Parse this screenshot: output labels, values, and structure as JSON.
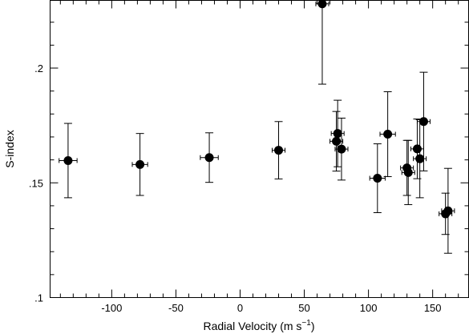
{
  "chart_data": {
    "type": "scatter",
    "xlabel": "Radial Velocity",
    "xlabel_unit": "(m s",
    "xlabel_unit_exp": "−1",
    "xlabel_unit_close": ")",
    "ylabel": "S-index",
    "xlim": [
      -148,
      178
    ],
    "ylim": [
      0.1,
      0.2295
    ],
    "xticks_major": [
      -100,
      -50,
      0,
      50,
      100,
      150
    ],
    "xtick_labels": [
      "-100",
      "-50",
      "0",
      "50",
      "100",
      "150"
    ],
    "xticks_minor_step": 10,
    "yticks_major": [
      0.1,
      0.15,
      0.2
    ],
    "ytick_labels": [
      ".1",
      ".15",
      ".2"
    ],
    "yticks_minor_step": 0.01,
    "grid": false,
    "points": [
      {
        "x": -134,
        "y": 0.1597,
        "xerr": 7,
        "yerr": 0.0162
      },
      {
        "x": -78,
        "y": 0.158,
        "xerr": 6,
        "yerr": 0.0135
      },
      {
        "x": -24,
        "y": 0.161,
        "xerr": 7,
        "yerr": 0.0108
      },
      {
        "x": 30,
        "y": 0.1642,
        "xerr": 5,
        "yerr": 0.0125
      },
      {
        "x": 64,
        "y": 0.228,
        "xerr": 5,
        "yerr": 0.035
      },
      {
        "x": 75,
        "y": 0.1681,
        "xerr": 5,
        "yerr": 0.013
      },
      {
        "x": 76,
        "y": 0.1715,
        "xerr": 5,
        "yerr": 0.0145
      },
      {
        "x": 79,
        "y": 0.1647,
        "xerr": 5,
        "yerr": 0.0135
      },
      {
        "x": 107,
        "y": 0.152,
        "xerr": 6,
        "yerr": 0.015
      },
      {
        "x": 115,
        "y": 0.1712,
        "xerr": 6,
        "yerr": 0.0185
      },
      {
        "x": 130,
        "y": 0.1565,
        "xerr": 5,
        "yerr": 0.012
      },
      {
        "x": 131,
        "y": 0.1545,
        "xerr": 5,
        "yerr": 0.014
      },
      {
        "x": 138,
        "y": 0.1648,
        "xerr": 5,
        "yerr": 0.013
      },
      {
        "x": 140,
        "y": 0.1605,
        "xerr": 5,
        "yerr": 0.017
      },
      {
        "x": 143,
        "y": 0.1767,
        "xerr": 5,
        "yerr": 0.0215
      },
      {
        "x": 160,
        "y": 0.1365,
        "xerr": 5,
        "yerr": 0.009
      },
      {
        "x": 162,
        "y": 0.1378,
        "xerr": 5,
        "yerr": 0.0185
      }
    ]
  }
}
